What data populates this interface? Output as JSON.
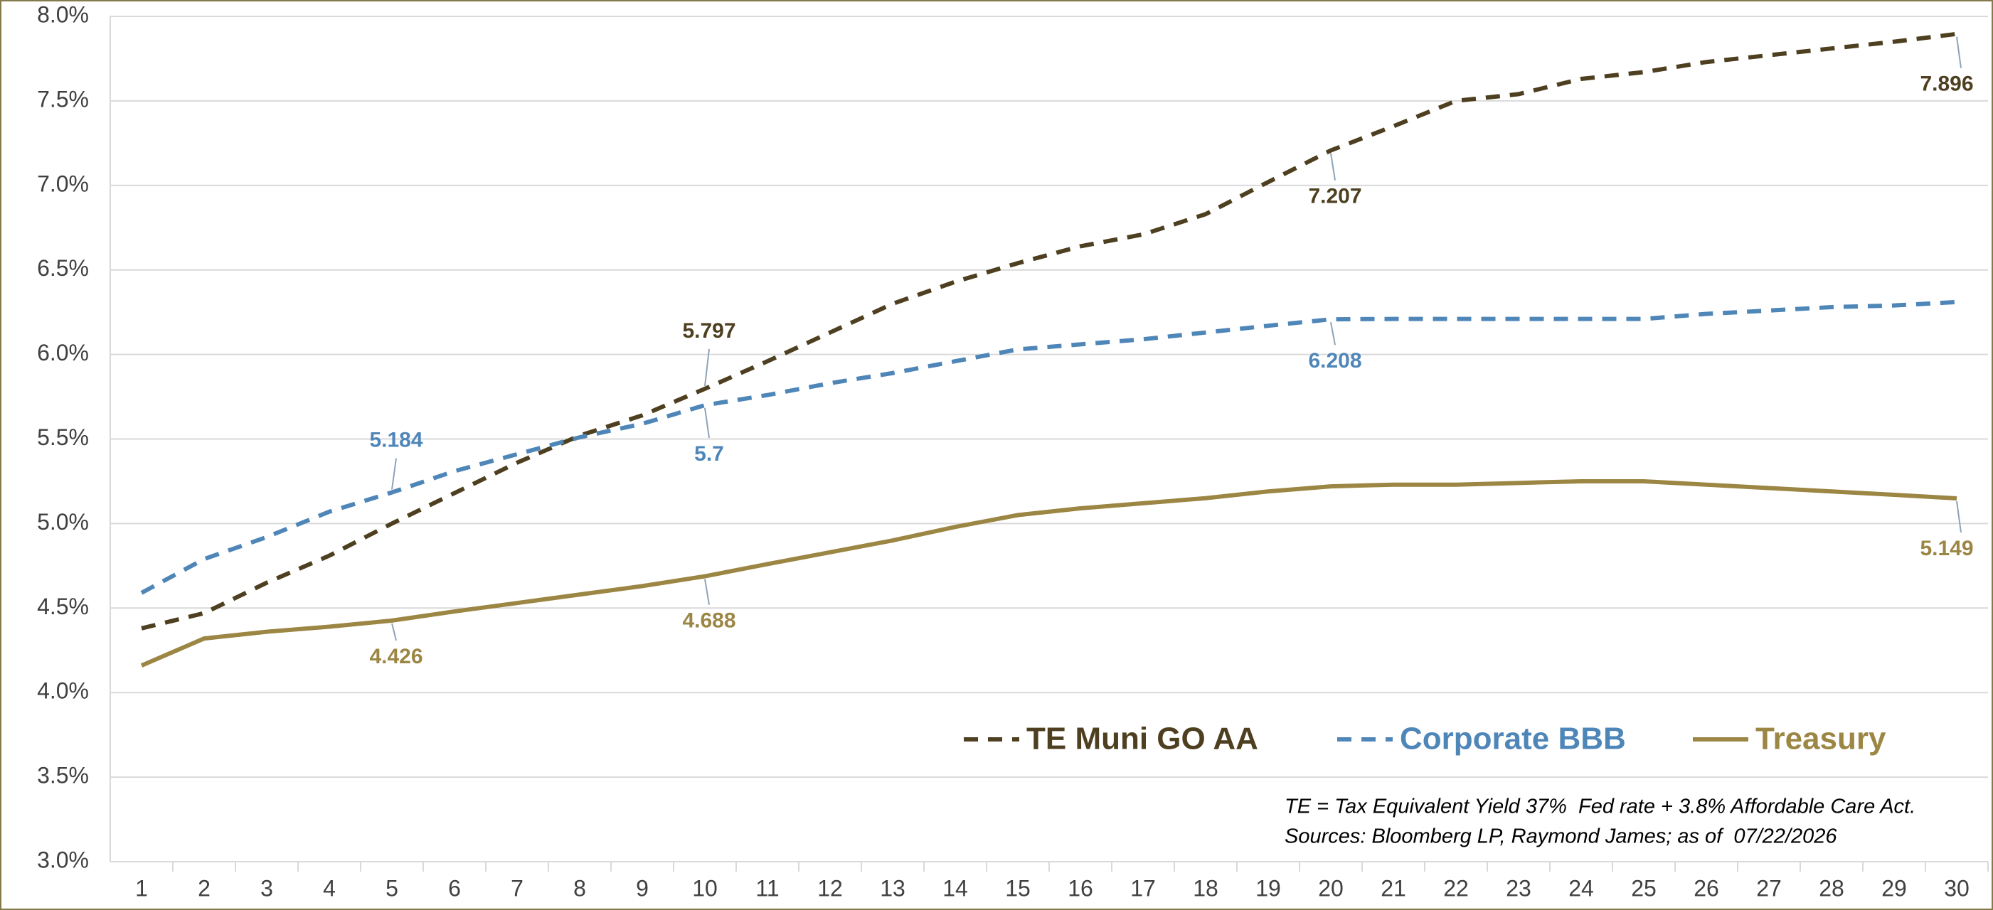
{
  "chart_data": {
    "type": "line",
    "x": [
      1,
      2,
      3,
      4,
      5,
      6,
      7,
      8,
      9,
      10,
      11,
      12,
      13,
      14,
      15,
      16,
      17,
      18,
      19,
      20,
      21,
      22,
      23,
      24,
      25,
      26,
      27,
      28,
      29,
      30
    ],
    "xlim": [
      0.5,
      30.5
    ],
    "ylim": [
      3,
      8
    ],
    "yticks": [
      {
        "value": 3,
        "label": "3.0%"
      },
      {
        "value": 3.5,
        "label": "3.5%"
      },
      {
        "value": 4,
        "label": "4.0%"
      },
      {
        "value": 4.5,
        "label": "4.5%"
      },
      {
        "value": 5,
        "label": "5.0%"
      },
      {
        "value": 5.5,
        "label": "5.5%"
      },
      {
        "value": 6,
        "label": "6.0%"
      },
      {
        "value": 6.5,
        "label": "6.5%"
      },
      {
        "value": 7,
        "label": "7.0%"
      },
      {
        "value": 7.5,
        "label": "7.5%"
      },
      {
        "value": 8,
        "label": "8.0%"
      }
    ],
    "grid": true,
    "legend": "bottom-right",
    "series": [
      {
        "name": "TE Muni GO AA",
        "color": "#4d3f1f",
        "dash": true,
        "labeled": [
          9,
          19,
          29
        ],
        "values": [
          4.38,
          4.47,
          4.65,
          4.81,
          5.0,
          5.18,
          5.36,
          5.52,
          5.64,
          5.797,
          5.96,
          6.13,
          6.3,
          6.43,
          6.54,
          6.64,
          6.71,
          6.83,
          7.02,
          7.207,
          7.35,
          7.5,
          7.54,
          7.63,
          7.67,
          7.73,
          7.77,
          7.81,
          7.85,
          7.896
        ]
      },
      {
        "name": "Corporate BBB",
        "color": "#4f86b8",
        "dash": true,
        "labeled": [
          4,
          9,
          19
        ],
        "values": [
          4.59,
          4.79,
          4.92,
          5.07,
          5.184,
          5.31,
          5.41,
          5.51,
          5.59,
          5.7,
          5.76,
          5.83,
          5.89,
          5.96,
          6.03,
          6.06,
          6.09,
          6.13,
          6.17,
          6.208,
          6.21,
          6.21,
          6.21,
          6.21,
          6.21,
          6.24,
          6.26,
          6.28,
          6.29,
          6.31
        ]
      },
      {
        "name": "Treasury",
        "color": "#9c8644",
        "dash": false,
        "labeled": [
          4,
          9,
          29
        ],
        "values": [
          4.16,
          4.32,
          4.36,
          4.39,
          4.426,
          4.48,
          4.53,
          4.58,
          4.63,
          4.688,
          4.76,
          4.83,
          4.9,
          4.98,
          5.05,
          5.09,
          5.12,
          5.15,
          5.19,
          5.22,
          5.23,
          5.23,
          5.24,
          5.25,
          5.25,
          5.23,
          5.21,
          5.19,
          5.17,
          5.149
        ]
      }
    ],
    "note": [
      "TE = Tax Equivalent Yield 37%  Fed rate + 3.8% Affordable Care Act.",
      "Sources: Bloomberg LP, Raymond James; as of  07/22/2026"
    ]
  }
}
